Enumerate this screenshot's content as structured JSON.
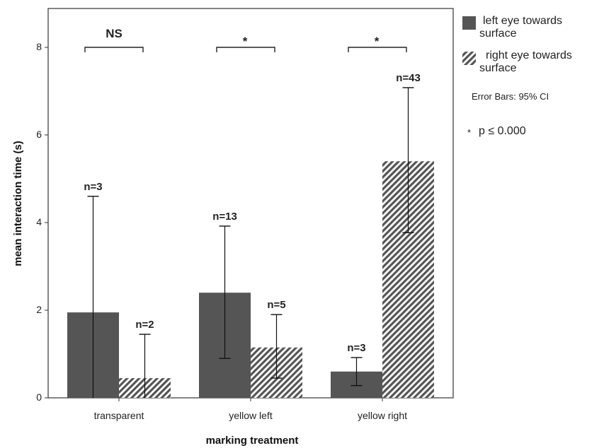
{
  "chart_data": {
    "type": "bar",
    "xlabel": "marking treatment",
    "ylabel": "mean interaction time (s)",
    "ylim": [
      0,
      8.8
    ],
    "yticks": [
      "0",
      "2",
      "4",
      "6",
      "8"
    ],
    "categories": [
      "transparent",
      "yellow left",
      "yellow right"
    ],
    "series": [
      {
        "name": "left eye towards surface",
        "color": "#555555",
        "pattern": "solid",
        "values": [
          1.95,
          2.4,
          0.6
        ],
        "ci_low": [
          0.0,
          0.9,
          0.28
        ],
        "ci_high": [
          4.6,
          3.92,
          0.92
        ],
        "n_labels": [
          "n=3",
          "n=13",
          "n=3"
        ]
      },
      {
        "name": "right eye towards surface",
        "color": "#555555",
        "pattern": "diagonal-hatch",
        "values": [
          0.45,
          1.15,
          5.4
        ],
        "ci_low": [
          0.0,
          0.45,
          3.77
        ],
        "ci_high": [
          1.45,
          1.9,
          7.08
        ],
        "n_labels": [
          "n=2",
          "n=5",
          "n=43"
        ]
      }
    ],
    "significance": [
      "NS",
      "*",
      "*"
    ],
    "significance_level": 8.0,
    "legend": {
      "position": "right",
      "items": [
        {
          "label_line1": "left eye towards",
          "label_line2": "surface"
        },
        {
          "label_line1": "right eye towards",
          "label_line2": "surface"
        }
      ],
      "note": "Error Bars: 95% CI",
      "star_symbol": "*",
      "star_note": "p ≤ 0.000"
    },
    "grid": false
  }
}
